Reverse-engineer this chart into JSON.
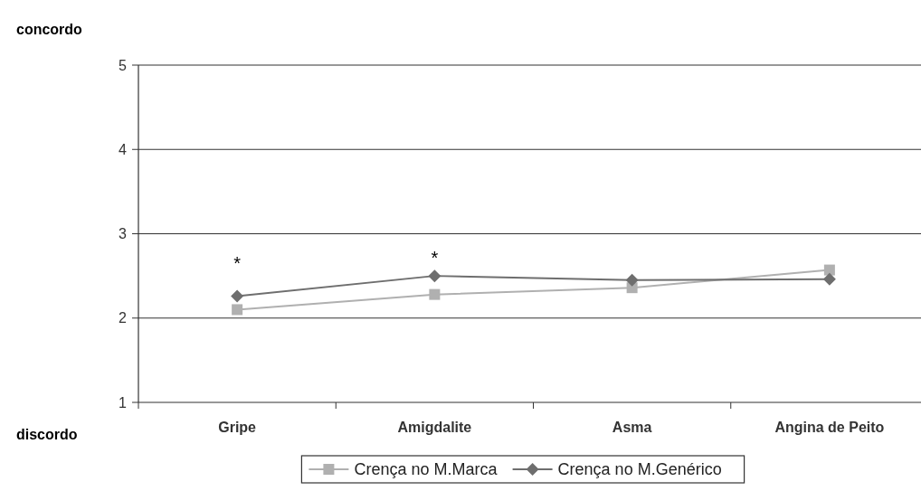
{
  "chart_data": {
    "type": "line",
    "categories": [
      "Gripe",
      "Amigdalite",
      "Asma",
      "Angina de Peito"
    ],
    "series": [
      {
        "name": "Crença no M.Marca",
        "color": "#b0b0b0",
        "marker": "square",
        "values": [
          2.1,
          2.28,
          2.36,
          2.57
        ]
      },
      {
        "name": "Crença no M.Genérico",
        "color": "#6e6e6e",
        "marker": "diamond",
        "values": [
          2.26,
          2.5,
          2.45,
          2.46
        ]
      }
    ],
    "ylim": [
      1,
      5
    ],
    "yticks": [
      1,
      2,
      3,
      4,
      5
    ],
    "grid": "y",
    "legend": "bottom",
    "line_style": "solid",
    "annotations": [
      "concordo",
      "discordo",
      "*",
      "*"
    ]
  }
}
